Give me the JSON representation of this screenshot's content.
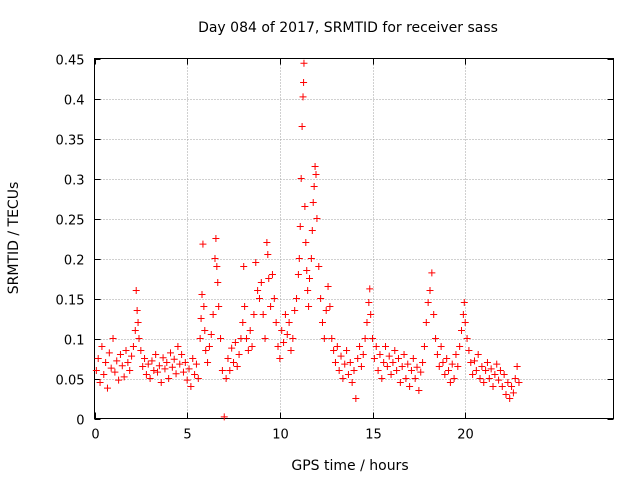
{
  "chart_data": {
    "type": "scatter",
    "title": "Day 084 of 2017, SRMTID for receiver sass",
    "xlabel": "GPS time / hours",
    "ylabel": "SRMTID / TECUs",
    "xlim": [
      0,
      28
    ],
    "ylim": [
      0,
      0.45
    ],
    "xticks": [
      0,
      5,
      10,
      15,
      20
    ],
    "xtick_labels": [
      "0",
      "5",
      "10",
      "15",
      "20"
    ],
    "yticks": [
      0,
      0.05,
      0.1,
      0.15,
      0.2,
      0.25,
      0.3,
      0.35,
      0.4,
      0.45
    ],
    "ytick_labels": [
      "0",
      "0.05",
      "0.1",
      "0.15",
      "0.2",
      "0.25",
      "0.3",
      "0.35",
      "0.4",
      "0.45"
    ],
    "grid": true,
    "marker": "+",
    "color": "#ff0000",
    "series": [
      {
        "name": "SRMTID",
        "points": [
          [
            0.1,
            0.06
          ],
          [
            0.2,
            0.075
          ],
          [
            0.3,
            0.045
          ],
          [
            0.4,
            0.09
          ],
          [
            0.5,
            0.055
          ],
          [
            0.6,
            0.07
          ],
          [
            0.7,
            0.038
          ],
          [
            0.8,
            0.082
          ],
          [
            0.9,
            0.063
          ],
          [
            1.0,
            0.1
          ],
          [
            1.1,
            0.058
          ],
          [
            1.2,
            0.072
          ],
          [
            1.3,
            0.048
          ],
          [
            1.4,
            0.08
          ],
          [
            1.5,
            0.066
          ],
          [
            1.6,
            0.052
          ],
          [
            1.7,
            0.085
          ],
          [
            1.8,
            0.07
          ],
          [
            1.9,
            0.06
          ],
          [
            2.0,
            0.078
          ],
          [
            2.1,
            0.09
          ],
          [
            2.2,
            0.11
          ],
          [
            2.25,
            0.16
          ],
          [
            2.3,
            0.135
          ],
          [
            2.35,
            0.12
          ],
          [
            2.4,
            0.1
          ],
          [
            2.5,
            0.085
          ],
          [
            2.6,
            0.065
          ],
          [
            2.7,
            0.075
          ],
          [
            2.8,
            0.055
          ],
          [
            2.9,
            0.068
          ],
          [
            3.0,
            0.05
          ],
          [
            3.1,
            0.072
          ],
          [
            3.2,
            0.06
          ],
          [
            3.3,
            0.08
          ],
          [
            3.4,
            0.058
          ],
          [
            3.5,
            0.066
          ],
          [
            3.6,
            0.045
          ],
          [
            3.7,
            0.076
          ],
          [
            3.8,
            0.062
          ],
          [
            3.9,
            0.07
          ],
          [
            4.0,
            0.05
          ],
          [
            4.1,
            0.082
          ],
          [
            4.2,
            0.064
          ],
          [
            4.3,
            0.074
          ],
          [
            4.4,
            0.056
          ],
          [
            4.5,
            0.09
          ],
          [
            4.6,
            0.068
          ],
          [
            4.7,
            0.08
          ],
          [
            4.8,
            0.058
          ],
          [
            4.9,
            0.07
          ],
          [
            5.0,
            0.048
          ],
          [
            5.1,
            0.062
          ],
          [
            5.2,
            0.04
          ],
          [
            5.3,
            0.075
          ],
          [
            5.4,
            0.055
          ],
          [
            5.5,
            0.068
          ],
          [
            5.6,
            0.05
          ],
          [
            5.7,
            0.1
          ],
          [
            5.75,
            0.125
          ],
          [
            5.8,
            0.155
          ],
          [
            5.85,
            0.218
          ],
          [
            5.9,
            0.14
          ],
          [
            5.95,
            0.11
          ],
          [
            6.0,
            0.085
          ],
          [
            6.1,
            0.07
          ],
          [
            6.2,
            0.09
          ],
          [
            6.3,
            0.105
          ],
          [
            6.4,
            0.13
          ],
          [
            6.5,
            0.2
          ],
          [
            6.55,
            0.225
          ],
          [
            6.6,
            0.19
          ],
          [
            6.65,
            0.17
          ],
          [
            6.7,
            0.14
          ],
          [
            6.8,
            0.1
          ],
          [
            6.9,
            0.06
          ],
          [
            7.0,
            0.002
          ],
          [
            7.1,
            0.05
          ],
          [
            7.2,
            0.075
          ],
          [
            7.3,
            0.06
          ],
          [
            7.4,
            0.088
          ],
          [
            7.5,
            0.07
          ],
          [
            7.6,
            0.095
          ],
          [
            7.7,
            0.065
          ],
          [
            7.8,
            0.08
          ],
          [
            7.9,
            0.1
          ],
          [
            8.0,
            0.12
          ],
          [
            8.05,
            0.19
          ],
          [
            8.1,
            0.14
          ],
          [
            8.2,
            0.1
          ],
          [
            8.3,
            0.085
          ],
          [
            8.4,
            0.11
          ],
          [
            8.5,
            0.09
          ],
          [
            8.6,
            0.13
          ],
          [
            8.7,
            0.195
          ],
          [
            8.8,
            0.16
          ],
          [
            8.9,
            0.15
          ],
          [
            9.0,
            0.17
          ],
          [
            9.1,
            0.13
          ],
          [
            9.2,
            0.1
          ],
          [
            9.3,
            0.22
          ],
          [
            9.35,
            0.205
          ],
          [
            9.4,
            0.175
          ],
          [
            9.5,
            0.14
          ],
          [
            9.6,
            0.18
          ],
          [
            9.7,
            0.15
          ],
          [
            9.8,
            0.12
          ],
          [
            9.9,
            0.09
          ],
          [
            10.0,
            0.075
          ],
          [
            10.1,
            0.11
          ],
          [
            10.2,
            0.095
          ],
          [
            10.3,
            0.13
          ],
          [
            10.4,
            0.105
          ],
          [
            10.5,
            0.12
          ],
          [
            10.6,
            0.085
          ],
          [
            10.7,
            0.1
          ],
          [
            10.8,
            0.135
          ],
          [
            10.9,
            0.15
          ],
          [
            11.0,
            0.18
          ],
          [
            11.05,
            0.2
          ],
          [
            11.1,
            0.24
          ],
          [
            11.15,
            0.3
          ],
          [
            11.2,
            0.365
          ],
          [
            11.25,
            0.402
          ],
          [
            11.28,
            0.42
          ],
          [
            11.3,
            0.444
          ],
          [
            11.35,
            0.265
          ],
          [
            11.4,
            0.22
          ],
          [
            11.45,
            0.185
          ],
          [
            11.5,
            0.16
          ],
          [
            11.55,
            0.14
          ],
          [
            11.6,
            0.175
          ],
          [
            11.7,
            0.2
          ],
          [
            11.75,
            0.235
          ],
          [
            11.8,
            0.27
          ],
          [
            11.85,
            0.29
          ],
          [
            11.9,
            0.315
          ],
          [
            11.95,
            0.305
          ],
          [
            12.0,
            0.25
          ],
          [
            12.1,
            0.19
          ],
          [
            12.2,
            0.15
          ],
          [
            12.3,
            0.12
          ],
          [
            12.4,
            0.1
          ],
          [
            12.5,
            0.135
          ],
          [
            12.6,
            0.165
          ],
          [
            12.7,
            0.14
          ],
          [
            12.8,
            0.1
          ],
          [
            12.9,
            0.085
          ],
          [
            13.0,
            0.07
          ],
          [
            13.1,
            0.09
          ],
          [
            13.2,
            0.06
          ],
          [
            13.3,
            0.078
          ],
          [
            13.4,
            0.05
          ],
          [
            13.5,
            0.068
          ],
          [
            13.6,
            0.085
          ],
          [
            13.7,
            0.055
          ],
          [
            13.8,
            0.07
          ],
          [
            13.9,
            0.045
          ],
          [
            14.0,
            0.06
          ],
          [
            14.1,
            0.025
          ],
          [
            14.2,
            0.075
          ],
          [
            14.3,
            0.09
          ],
          [
            14.4,
            0.065
          ],
          [
            14.5,
            0.08
          ],
          [
            14.6,
            0.1
          ],
          [
            14.7,
            0.12
          ],
          [
            14.8,
            0.145
          ],
          [
            14.85,
            0.162
          ],
          [
            14.9,
            0.13
          ],
          [
            15.0,
            0.1
          ],
          [
            15.1,
            0.075
          ],
          [
            15.2,
            0.09
          ],
          [
            15.3,
            0.06
          ],
          [
            15.4,
            0.08
          ],
          [
            15.5,
            0.05
          ],
          [
            15.6,
            0.07
          ],
          [
            15.7,
            0.09
          ],
          [
            15.8,
            0.065
          ],
          [
            15.9,
            0.078
          ],
          [
            16.0,
            0.055
          ],
          [
            16.1,
            0.07
          ],
          [
            16.2,
            0.085
          ],
          [
            16.3,
            0.06
          ],
          [
            16.4,
            0.075
          ],
          [
            16.5,
            0.045
          ],
          [
            16.6,
            0.065
          ],
          [
            16.7,
            0.08
          ],
          [
            16.8,
            0.05
          ],
          [
            16.9,
            0.068
          ],
          [
            17.0,
            0.04
          ],
          [
            17.1,
            0.06
          ],
          [
            17.2,
            0.075
          ],
          [
            17.3,
            0.05
          ],
          [
            17.4,
            0.064
          ],
          [
            17.5,
            0.035
          ],
          [
            17.6,
            0.058
          ],
          [
            17.7,
            0.07
          ],
          [
            17.8,
            0.09
          ],
          [
            17.9,
            0.12
          ],
          [
            18.0,
            0.145
          ],
          [
            18.1,
            0.16
          ],
          [
            18.2,
            0.182
          ],
          [
            18.3,
            0.13
          ],
          [
            18.4,
            0.1
          ],
          [
            18.5,
            0.08
          ],
          [
            18.6,
            0.065
          ],
          [
            18.7,
            0.09
          ],
          [
            18.8,
            0.07
          ],
          [
            18.9,
            0.055
          ],
          [
            19.0,
            0.075
          ],
          [
            19.1,
            0.06
          ],
          [
            19.2,
            0.045
          ],
          [
            19.3,
            0.068
          ],
          [
            19.4,
            0.05
          ],
          [
            19.5,
            0.08
          ],
          [
            19.6,
            0.065
          ],
          [
            19.7,
            0.09
          ],
          [
            19.8,
            0.11
          ],
          [
            19.9,
            0.13
          ],
          [
            19.95,
            0.145
          ],
          [
            20.0,
            0.12
          ],
          [
            20.1,
            0.1
          ],
          [
            20.2,
            0.085
          ],
          [
            20.3,
            0.07
          ],
          [
            20.4,
            0.055
          ],
          [
            20.5,
            0.072
          ],
          [
            20.6,
            0.06
          ],
          [
            20.7,
            0.08
          ],
          [
            20.8,
            0.05
          ],
          [
            20.9,
            0.065
          ],
          [
            21.0,
            0.045
          ],
          [
            21.1,
            0.06
          ],
          [
            21.2,
            0.07
          ],
          [
            21.3,
            0.05
          ],
          [
            21.4,
            0.062
          ],
          [
            21.5,
            0.04
          ],
          [
            21.6,
            0.055
          ],
          [
            21.7,
            0.068
          ],
          [
            21.8,
            0.048
          ],
          [
            21.9,
            0.06
          ],
          [
            22.0,
            0.04
          ],
          [
            22.1,
            0.055
          ],
          [
            22.2,
            0.03
          ],
          [
            22.3,
            0.045
          ],
          [
            22.4,
            0.025
          ],
          [
            22.5,
            0.04
          ],
          [
            22.6,
            0.032
          ],
          [
            22.7,
            0.05
          ],
          [
            22.8,
            0.065
          ],
          [
            22.9,
            0.045
          ]
        ]
      }
    ]
  }
}
